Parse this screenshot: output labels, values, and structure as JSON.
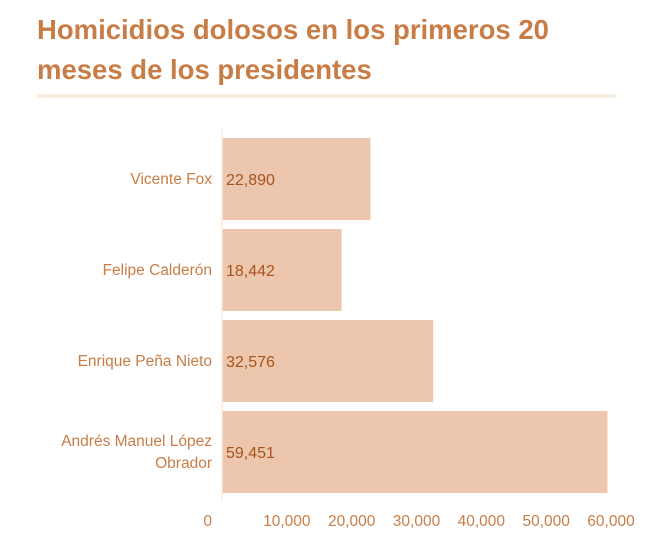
{
  "title": "Homicidios dolosos en los primeros 20 meses de los presidentes",
  "colors": {
    "accent": "#c87d47",
    "bar": "#ecc7ae",
    "value_text": "#a8521c",
    "rule": "#f8ebe0"
  },
  "chart_data": {
    "type": "bar",
    "orientation": "horizontal",
    "title": "Homicidios dolosos en los primeros 20 meses de los presidentes",
    "xlabel": "",
    "ylabel": "",
    "categories": [
      "Vicente Fox",
      "Felipe Calderón",
      "Enrique Peña Nieto",
      "Andrés Manuel López Obrador"
    ],
    "category_lines": [
      [
        "Vicente Fox"
      ],
      [
        "Felipe Calderón"
      ],
      [
        "Enrique Peña Nieto"
      ],
      [
        "Andrés Manuel López",
        "Obrador"
      ]
    ],
    "values": [
      22890,
      18442,
      32576,
      59451
    ],
    "value_labels": [
      "22,890",
      "18,442",
      "32,576",
      "59,451"
    ],
    "xlim": [
      0,
      60000
    ],
    "ticks": [
      0,
      10000,
      20000,
      30000,
      40000,
      50000,
      60000
    ],
    "tick_labels": [
      "0",
      "10,000",
      "20,000",
      "30,000",
      "40,000",
      "50,000",
      "60,000"
    ],
    "grid": false,
    "legend": "none"
  }
}
